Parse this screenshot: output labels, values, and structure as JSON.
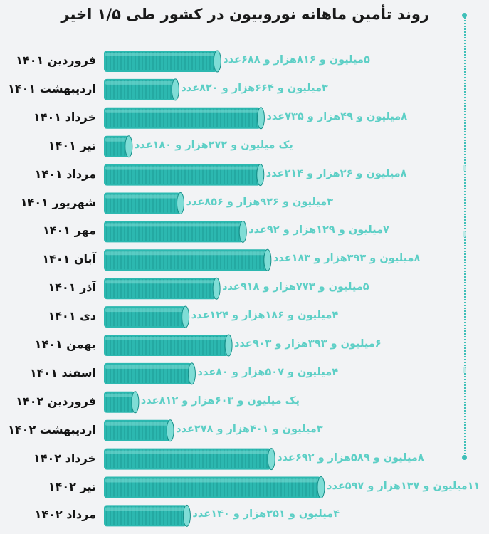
{
  "title": "روند تأمین ماهانه نوروبیون در کشور طی ۱/۵ اخیر",
  "colors": {
    "bar": "#2cb8b0",
    "bar_dark": "#168f89",
    "bar_light": "#7fddd6",
    "value_text": "#5dcfc6",
    "accent": "#3fbfb8"
  },
  "chart_data": {
    "type": "bar",
    "orientation": "horizontal",
    "title": "روند تأمین ماهانه نوروبیون در کشور طی ۱/۵ اخیر",
    "xlabel": "",
    "ylabel": "",
    "grid": false,
    "categories": [
      "فروردین ۱۴۰۱",
      "اردیبهشت ۱۴۰۱",
      "خرداد ۱۴۰۱",
      "تیر ۱۴۰۱",
      "مرداد ۱۴۰۱",
      "شهریور ۱۴۰۱",
      "مهر ۱۴۰۱",
      "آبان ۱۴۰۱",
      "آذر ۱۴۰۱",
      "دی ۱۴۰۱",
      "بهمن ۱۴۰۱",
      "اسفند ۱۴۰۱",
      "فروردین ۱۴۰۲",
      "اردیبهشت ۱۴۰۲",
      "خرداد ۱۴۰۲",
      "تیر ۱۴۰۲",
      "مرداد ۱۴۰۲"
    ],
    "values": [
      5816688,
      3664820,
      8049735,
      1272180,
      8026214,
      3926856,
      7129092,
      8393183,
      5773918,
      4186124,
      6393903,
      4507080,
      1603812,
      3401278,
      8589692,
      11137597,
      4251140
    ],
    "value_labels": [
      "۵میلیون و ۸۱۶هزار و ۶۸۸عدد",
      "۳میلیون و ۶۶۴هزار و ۸۲۰عدد",
      "۸میلیون و ۴۹هزار و ۷۳۵عدد",
      "یک میلیون و ۲۷۲هزار و ۱۸۰عدد",
      "۸میلیون و ۲۶هزار و ۲۱۴عدد",
      "۳میلیون و ۹۲۶هزار و ۸۵۶عدد",
      "۷میلیون و ۱۲۹هزار و ۹۲عدد",
      "۸میلیون و ۳۹۳هزار و ۱۸۳عدد",
      "۵میلیون و ۷۷۳هزار و ۹۱۸عدد",
      "۴میلیون و ۱۸۶هزار و ۱۲۴عدد",
      "۶میلیون و ۳۹۳هزار و ۹۰۳عدد",
      "۴میلیون و ۵۰۷هزار و ۸۰عدد",
      "یک میلیون و ۶۰۳هزار و ۸۱۲عدد",
      "۳میلیون و ۴۰۱هزار و ۲۷۸عدد",
      "۸میلیون و ۵۸۹هزار و ۶۹۲عدد",
      "۱۱میلیون و ۱۳۷هزار و ۵۹۷عدد",
      "۴میلیون و ۲۵۱هزار و ۱۴۰عدد"
    ]
  }
}
